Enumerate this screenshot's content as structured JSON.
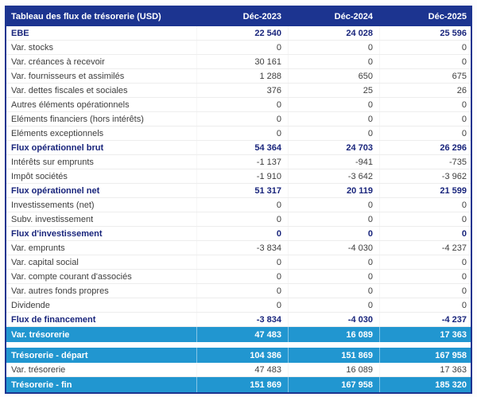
{
  "colors": {
    "navy": "#1c3490",
    "navy_text": "#19257c",
    "highlight_blue": "#2196d0",
    "body_text": "#3d3d3d"
  },
  "table": {
    "title": "Tableau des flux de trésorerie (USD)",
    "columns": [
      "Déc-2023",
      "Déc-2024",
      "Déc-2025"
    ],
    "rows": [
      {
        "label": "EBE",
        "values": [
          "22 540",
          "24 028",
          "25 596"
        ],
        "style": "subtotal"
      },
      {
        "label": "Var. stocks",
        "values": [
          "0",
          "0",
          "0"
        ],
        "style": "normal"
      },
      {
        "label": "Var. créances à recevoir",
        "values": [
          "30 161",
          "0",
          "0"
        ],
        "style": "normal"
      },
      {
        "label": "Var. fournisseurs et assimilés",
        "values": [
          "1 288",
          "650",
          "675"
        ],
        "style": "normal"
      },
      {
        "label": "Var. dettes fiscales et sociales",
        "values": [
          "376",
          "25",
          "26"
        ],
        "style": "normal"
      },
      {
        "label": "Autres éléments opérationnels",
        "values": [
          "0",
          "0",
          "0"
        ],
        "style": "normal"
      },
      {
        "label": "Eléments financiers (hors intérêts)",
        "values": [
          "0",
          "0",
          "0"
        ],
        "style": "normal"
      },
      {
        "label": "Eléments exceptionnels",
        "values": [
          "0",
          "0",
          "0"
        ],
        "style": "normal"
      },
      {
        "label": "Flux opérationnel brut",
        "values": [
          "54 364",
          "24 703",
          "26 296"
        ],
        "style": "subtotal"
      },
      {
        "label": "Intérêts sur emprunts",
        "values": [
          "-1 137",
          "-941",
          "-735"
        ],
        "style": "normal"
      },
      {
        "label": "Impôt sociétés",
        "values": [
          "-1 910",
          "-3 642",
          "-3 962"
        ],
        "style": "normal"
      },
      {
        "label": "Flux opérationnel net",
        "values": [
          "51 317",
          "20 119",
          "21 599"
        ],
        "style": "subtotal"
      },
      {
        "label": "Investissements (net)",
        "values": [
          "0",
          "0",
          "0"
        ],
        "style": "normal"
      },
      {
        "label": "Subv. investissement",
        "values": [
          "0",
          "0",
          "0"
        ],
        "style": "normal"
      },
      {
        "label": "Flux d'investissement",
        "values": [
          "0",
          "0",
          "0"
        ],
        "style": "subtotal"
      },
      {
        "label": "Var. emprunts",
        "values": [
          "-3 834",
          "-4 030",
          "-4 237"
        ],
        "style": "normal"
      },
      {
        "label": "Var. capital social",
        "values": [
          "0",
          "0",
          "0"
        ],
        "style": "normal"
      },
      {
        "label": "Var. compte courant d'associés",
        "values": [
          "0",
          "0",
          "0"
        ],
        "style": "normal"
      },
      {
        "label": "Var. autres fonds propres",
        "values": [
          "0",
          "0",
          "0"
        ],
        "style": "normal"
      },
      {
        "label": "Dividende",
        "values": [
          "0",
          "0",
          "0"
        ],
        "style": "normal"
      },
      {
        "label": "Flux de financement",
        "values": [
          "-3 834",
          "-4 030",
          "-4 237"
        ],
        "style": "subtotal"
      },
      {
        "label": "Var. trésorerie",
        "values": [
          "47 483",
          "16 089",
          "17 363"
        ],
        "style": "highlight"
      },
      {
        "label": "",
        "values": [
          "",
          "",
          ""
        ],
        "style": "spacer"
      },
      {
        "label": "Trésorerie - départ",
        "values": [
          "104 386",
          "151 869",
          "167 958"
        ],
        "style": "highlight"
      },
      {
        "label": "Var. trésorerie",
        "values": [
          "47 483",
          "16 089",
          "17 363"
        ],
        "style": "normal"
      },
      {
        "label": "Trésorerie - fin",
        "values": [
          "151 869",
          "167 958",
          "185 320"
        ],
        "style": "highlight"
      }
    ]
  }
}
